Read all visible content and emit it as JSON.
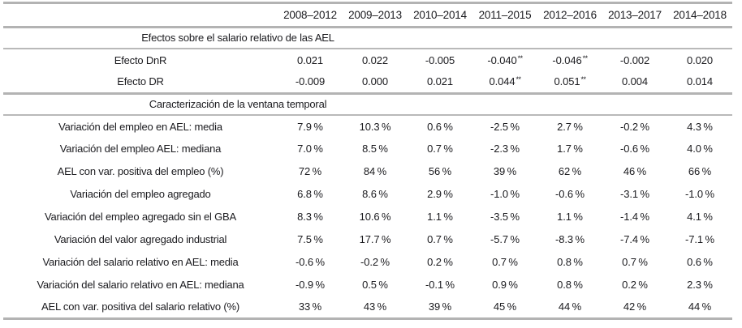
{
  "colors": {
    "text": "#1b1b1f",
    "rule": "#b3b3b3",
    "background": "#ffffff"
  },
  "table": {
    "columns": [
      "2008–2012",
      "2009–2013",
      "2010–2014",
      "2011–2015",
      "2012–2016",
      "2013–2017",
      "2014–2018"
    ],
    "sections": [
      {
        "header": "Efectos sobre el salario relativo de las AEL",
        "rows": [
          {
            "label": "Efecto DnR",
            "values": [
              "0.021",
              "0.022",
              "-0.005",
              {
                "v": "-0.040",
                "sup": "**"
              },
              {
                "v": "-0.046",
                "sup": "**"
              },
              "-0.002",
              "0.020"
            ]
          },
          {
            "label": "Efecto DR",
            "values": [
              "-0.009",
              "0.000",
              "0.021",
              {
                "v": "0.044",
                "sup": "**"
              },
              {
                "v": "0.051",
                "sup": "**"
              },
              "0.004",
              "0.014"
            ]
          }
        ]
      },
      {
        "header": "Caracterización de la ventana temporal",
        "rows": [
          {
            "label": "Variación del empleo en AEL: media",
            "values": [
              "7.9 %",
              "10.3 %",
              "0.6 %",
              "-2.5 %",
              "2.7 %",
              "-0.2 %",
              "4.3 %"
            ]
          },
          {
            "label": "Variación del empleo AEL: mediana",
            "values": [
              "7.0 %",
              "8.5 %",
              "0.7 %",
              "-2.3 %",
              "1.7 %",
              "-0.6 %",
              "4.0 %"
            ]
          },
          {
            "label": "AEL con var. positiva del empleo (%)",
            "values": [
              "72 %",
              "84 %",
              "56 %",
              "39 %",
              "62 %",
              "46 %",
              "66 %"
            ]
          },
          {
            "label": "Variación del empleo agregado",
            "values": [
              "6.8 %",
              "8.6 %",
              "2.9 %",
              "-1.0 %",
              "-0.6 %",
              "-3.1 %",
              "-1.0 %"
            ]
          },
          {
            "label": "Variación del empleo agregado sin el GBA",
            "values": [
              "8.3 %",
              "10.6 %",
              "1.1 %",
              "-3.5 %",
              "1.1 %",
              "-1.4 %",
              "4.1 %"
            ]
          },
          {
            "label": "Variación del valor agregado industrial",
            "values": [
              "7.5 %",
              "17.7 %",
              "0.7 %",
              "-5.7 %",
              "-8.3 %",
              "-7.4 %",
              "-7.1 %"
            ]
          },
          {
            "label": "Variación del salario relativo en AEL: media",
            "values": [
              "-0.6 %",
              "-0.2 %",
              "0.2 %",
              "0.7 %",
              "0.8 %",
              "0.7 %",
              "0.6 %"
            ]
          },
          {
            "label": "Variación del salario relativo en AEL: mediana",
            "values": [
              "-0.9 %",
              "0.5 %",
              "-0.1 %",
              "0.9 %",
              "0.8 %",
              "0.2 %",
              "2.3 %"
            ]
          },
          {
            "label": "AEL con var. positiva del salario relativo (%)",
            "values": [
              "33 %",
              "43 %",
              "39 %",
              "45 %",
              "44 %",
              "42 %",
              "44 %"
            ]
          }
        ]
      }
    ]
  }
}
